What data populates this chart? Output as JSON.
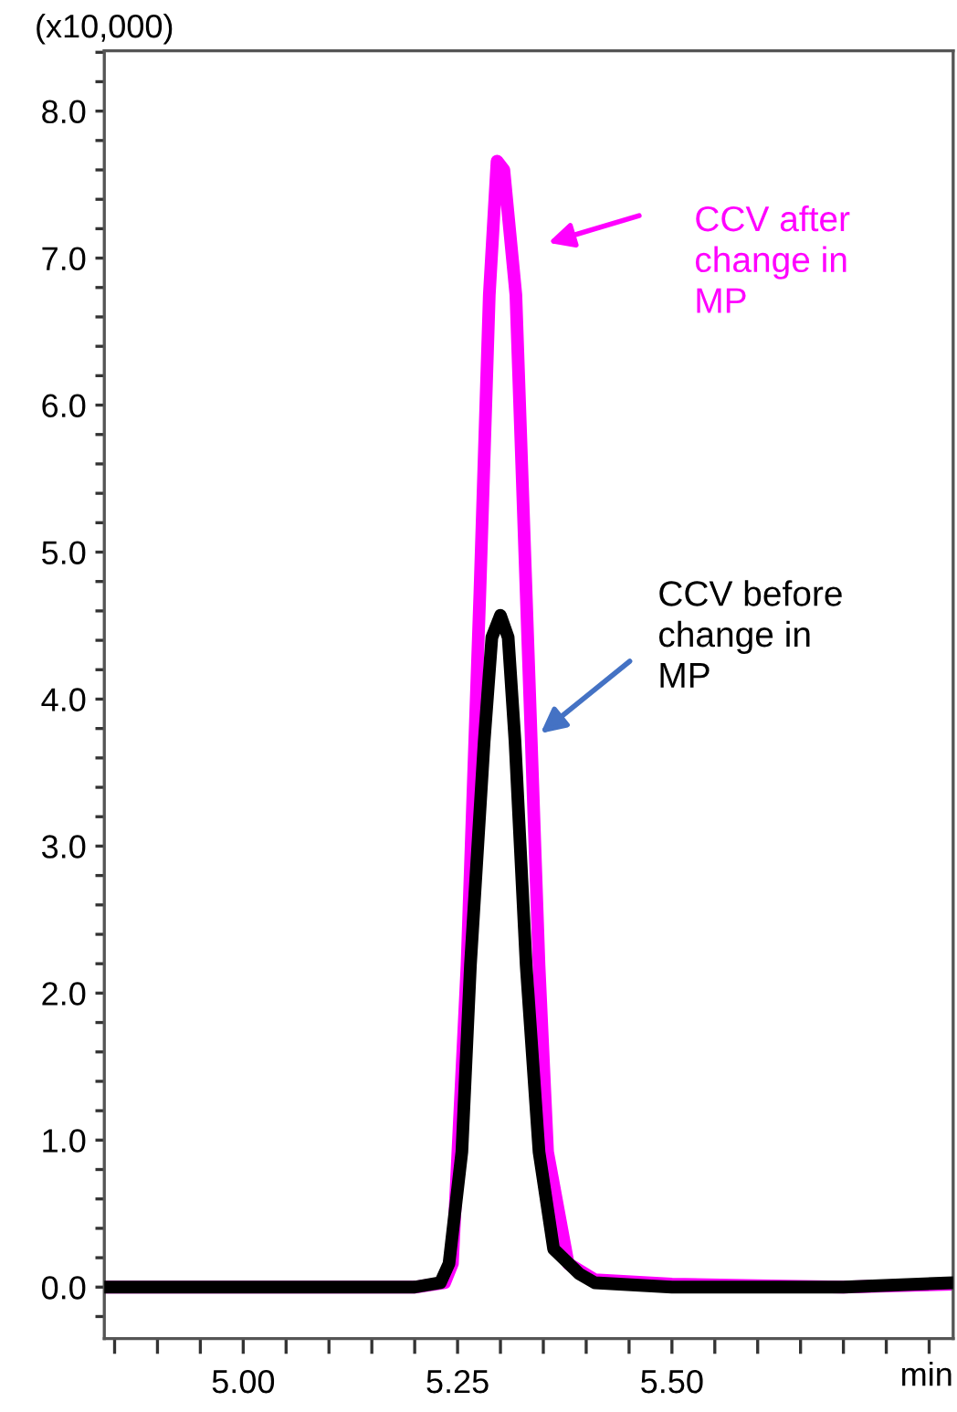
{
  "chart_data": {
    "type": "line",
    "ylabel": "(x10,000)",
    "xlabel": "min",
    "xlim": [
      4.838,
      5.828
    ],
    "ylim": [
      -0.35,
      8.41
    ],
    "xticks": [
      {
        "value": 4.85,
        "label": null
      },
      {
        "value": 4.9,
        "label": null
      },
      {
        "value": 4.95,
        "label": null
      },
      {
        "value": 5.0,
        "label": "5.00"
      },
      {
        "value": 5.05,
        "label": null
      },
      {
        "value": 5.1,
        "label": null
      },
      {
        "value": 5.15,
        "label": null
      },
      {
        "value": 5.2,
        "label": null
      },
      {
        "value": 5.25,
        "label": "5.25"
      },
      {
        "value": 5.3,
        "label": null
      },
      {
        "value": 5.35,
        "label": null
      },
      {
        "value": 5.4,
        "label": null
      },
      {
        "value": 5.45,
        "label": null
      },
      {
        "value": 5.5,
        "label": "5.50"
      },
      {
        "value": 5.55,
        "label": null
      },
      {
        "value": 5.6,
        "label": null
      },
      {
        "value": 5.65,
        "label": null
      },
      {
        "value": 5.7,
        "label": null
      },
      {
        "value": 5.75,
        "label": null
      },
      {
        "value": 5.8,
        "label": null
      }
    ],
    "yticks": [
      {
        "value": -0.2,
        "label": null
      },
      {
        "value": 0.0,
        "label": "0.0"
      },
      {
        "value": 0.2,
        "label": null
      },
      {
        "value": 0.4,
        "label": null
      },
      {
        "value": 0.6,
        "label": null
      },
      {
        "value": 0.8,
        "label": null
      },
      {
        "value": 1.0,
        "label": "1.0"
      },
      {
        "value": 1.2,
        "label": null
      },
      {
        "value": 1.4,
        "label": null
      },
      {
        "value": 1.6,
        "label": null
      },
      {
        "value": 1.8,
        "label": null
      },
      {
        "value": 2.0,
        "label": "2.0"
      },
      {
        "value": 2.2,
        "label": null
      },
      {
        "value": 2.4,
        "label": null
      },
      {
        "value": 2.6,
        "label": null
      },
      {
        "value": 2.8,
        "label": null
      },
      {
        "value": 3.0,
        "label": "3.0"
      },
      {
        "value": 3.2,
        "label": null
      },
      {
        "value": 3.4,
        "label": null
      },
      {
        "value": 3.6,
        "label": null
      },
      {
        "value": 3.8,
        "label": null
      },
      {
        "value": 4.0,
        "label": "4.0"
      },
      {
        "value": 4.2,
        "label": null
      },
      {
        "value": 4.4,
        "label": null
      },
      {
        "value": 4.6,
        "label": null
      },
      {
        "value": 4.8,
        "label": null
      },
      {
        "value": 5.0,
        "label": "5.0"
      },
      {
        "value": 5.2,
        "label": null
      },
      {
        "value": 5.4,
        "label": null
      },
      {
        "value": 5.6,
        "label": null
      },
      {
        "value": 5.8,
        "label": null
      },
      {
        "value": 6.0,
        "label": "6.0"
      },
      {
        "value": 6.2,
        "label": null
      },
      {
        "value": 6.4,
        "label": null
      },
      {
        "value": 6.6,
        "label": null
      },
      {
        "value": 6.8,
        "label": null
      },
      {
        "value": 7.0,
        "label": "7.0"
      },
      {
        "value": 7.2,
        "label": null
      },
      {
        "value": 7.4,
        "label": null
      },
      {
        "value": 7.6,
        "label": null
      },
      {
        "value": 7.8,
        "label": null
      },
      {
        "value": 8.0,
        "label": "8.0"
      },
      {
        "value": 8.2,
        "label": null
      },
      {
        "value": 8.4,
        "label": null
      }
    ],
    "series": [
      {
        "color": "#ff00ff",
        "x": [
          4.838,
          5.0,
          5.2,
          5.235,
          5.244,
          5.261,
          5.276,
          5.287,
          5.296,
          5.304,
          5.318,
          5.33,
          5.345,
          5.355,
          5.379,
          5.41,
          5.5,
          5.6,
          5.7,
          5.828
        ],
        "values": [
          0.0,
          0.0,
          0.0,
          0.03,
          0.16,
          2.19,
          4.72,
          6.75,
          7.66,
          7.6,
          6.75,
          4.72,
          2.19,
          0.92,
          0.16,
          0.05,
          0.02,
          0.01,
          0.0,
          0.02
        ]
      },
      {
        "color": "#000000",
        "x": [
          4.838,
          5.0,
          5.2,
          5.23,
          5.24,
          5.255,
          5.265,
          5.281,
          5.29,
          5.3,
          5.309,
          5.317,
          5.33,
          5.345,
          5.362,
          5.392,
          5.41,
          5.5,
          5.6,
          5.7,
          5.828
        ],
        "values": [
          0.0,
          0.0,
          0.0,
          0.03,
          0.16,
          0.92,
          2.19,
          3.71,
          4.42,
          4.57,
          4.42,
          3.71,
          2.19,
          0.92,
          0.26,
          0.09,
          0.03,
          0.0,
          0.0,
          0.0,
          0.03
        ]
      }
    ],
    "annotations": [
      "CCV after\nchange in\nMP",
      "CCV before\nchange in\nMP"
    ],
    "grid": false,
    "marker": "none",
    "line_style": "solid"
  }
}
